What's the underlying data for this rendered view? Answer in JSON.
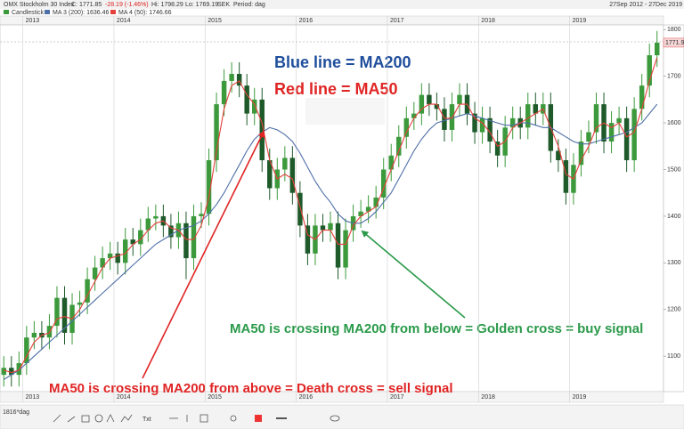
{
  "chart_data": {
    "type": "candlestick",
    "title": "OMX Stockholm 30 Index",
    "quote": [
      "C: 1771.85",
      "-28.19 (-1.46%)",
      "Hi: 1798.29",
      "Lo: 1769.19",
      "SEK",
      "Period: dag"
    ],
    "date_range": "27Sep 2012 - 27Dec 2019",
    "candle_name": "Candlestick",
    "up_color": "#3c9a3c",
    "down_color": "#1e5a2a",
    "price_tag": "1771.9",
    "toolbar": [
      "1816*dag",
      "Txt"
    ],
    "categories": [
      null,
      null,
      null,
      "2013",
      null,
      null,
      null,
      null,
      null,
      null,
      null,
      null,
      null,
      null,
      null,
      "2014",
      null,
      null,
      null,
      null,
      null,
      null,
      null,
      null,
      null,
      null,
      null,
      "2015",
      null,
      null,
      null,
      null,
      null,
      null,
      null,
      null,
      null,
      null,
      null,
      "2016",
      null,
      null,
      null,
      null,
      null,
      null,
      null,
      null,
      null,
      null,
      null,
      "2017",
      null,
      null,
      null,
      null,
      null,
      null,
      null,
      null,
      null,
      null,
      null,
      "2018",
      null,
      null,
      null,
      null,
      null,
      null,
      null,
      null,
      null,
      null,
      null,
      "2019",
      null,
      null,
      null,
      null,
      null,
      null,
      null,
      null,
      null,
      null,
      null
    ],
    "open": [
      1060,
      1075,
      1060,
      1085,
      1140,
      1150,
      1140,
      1165,
      1225,
      1150,
      1210,
      1215,
      1265,
      1290,
      1310,
      1320,
      1300,
      1350,
      1340,
      1370,
      1395,
      1400,
      1380,
      1355,
      1385,
      1310,
      1400,
      1405,
      1520,
      1640,
      1690,
      1705,
      1680,
      1620,
      1650,
      1520,
      1460,
      1500,
      1525,
      1450,
      1380,
      1320,
      1380,
      1370,
      1385,
      1290,
      1370,
      1400,
      1410,
      1420,
      1440,
      1500,
      1530,
      1570,
      1610,
      1620,
      1660,
      1640,
      1630,
      1585,
      1640,
      1660,
      1620,
      1580,
      1610,
      1560,
      1530,
      1590,
      1610,
      1590,
      1640,
      1620,
      1640,
      1540,
      1520,
      1450,
      1510,
      1560,
      1580,
      1640,
      1560,
      1600,
      1610,
      1520,
      1630,
      1680,
      1745
    ],
    "high": [
      1100,
      1100,
      1110,
      1165,
      1175,
      1175,
      1190,
      1250,
      1250,
      1235,
      1240,
      1290,
      1315,
      1335,
      1345,
      1345,
      1375,
      1375,
      1395,
      1420,
      1425,
      1425,
      1405,
      1410,
      1410,
      1425,
      1430,
      1545,
      1665,
      1715,
      1730,
      1730,
      1705,
      1675,
      1675,
      1545,
      1525,
      1550,
      1550,
      1475,
      1405,
      1405,
      1405,
      1410,
      1410,
      1395,
      1425,
      1435,
      1445,
      1465,
      1525,
      1555,
      1595,
      1635,
      1645,
      1685,
      1685,
      1665,
      1655,
      1665,
      1685,
      1685,
      1645,
      1635,
      1635,
      1585,
      1615,
      1635,
      1635,
      1665,
      1665,
      1665,
      1665,
      1565,
      1545,
      1535,
      1585,
      1605,
      1665,
      1665,
      1625,
      1635,
      1635,
      1655,
      1705,
      1770,
      1797
    ],
    "low": [
      1035,
      1035,
      1035,
      1060,
      1115,
      1115,
      1115,
      1140,
      1125,
      1125,
      1185,
      1190,
      1240,
      1265,
      1285,
      1275,
      1275,
      1315,
      1315,
      1345,
      1370,
      1355,
      1330,
      1330,
      1265,
      1285,
      1375,
      1380,
      1495,
      1615,
      1665,
      1655,
      1595,
      1595,
      1495,
      1435,
      1435,
      1475,
      1425,
      1355,
      1295,
      1295,
      1345,
      1345,
      1265,
      1265,
      1345,
      1375,
      1385,
      1395,
      1415,
      1475,
      1505,
      1545,
      1585,
      1595,
      1615,
      1605,
      1560,
      1560,
      1615,
      1595,
      1555,
      1555,
      1535,
      1505,
      1505,
      1565,
      1565,
      1565,
      1595,
      1595,
      1515,
      1495,
      1425,
      1425,
      1485,
      1535,
      1555,
      1535,
      1535,
      1575,
      1495,
      1495,
      1605,
      1655,
      1720
    ],
    "close": [
      1075,
      1060,
      1085,
      1140,
      1150,
      1140,
      1165,
      1225,
      1150,
      1210,
      1215,
      1265,
      1290,
      1310,
      1320,
      1300,
      1350,
      1340,
      1370,
      1395,
      1400,
      1380,
      1355,
      1385,
      1310,
      1400,
      1405,
      1520,
      1640,
      1690,
      1705,
      1680,
      1620,
      1650,
      1520,
      1460,
      1500,
      1525,
      1450,
      1380,
      1320,
      1380,
      1370,
      1385,
      1290,
      1370,
      1400,
      1410,
      1420,
      1440,
      1500,
      1530,
      1570,
      1610,
      1620,
      1660,
      1640,
      1630,
      1585,
      1640,
      1660,
      1620,
      1580,
      1610,
      1560,
      1530,
      1590,
      1610,
      1590,
      1640,
      1620,
      1640,
      1540,
      1520,
      1450,
      1510,
      1560,
      1580,
      1640,
      1560,
      1600,
      1610,
      1520,
      1630,
      1680,
      1745,
      1772
    ],
    "series": [
      {
        "name": "MA 3 (200): 1636.46",
        "color": "#4f6fa8",
        "values": [
          1050,
          1060,
          1070,
          1085,
          1100,
          1115,
          1130,
          1145,
          1160,
          1175,
          1190,
          1205,
          1220,
          1235,
          1250,
          1265,
          1280,
          1295,
          1310,
          1325,
          1340,
          1350,
          1360,
          1370,
          1375,
          1380,
          1390,
          1405,
          1425,
          1450,
          1480,
          1510,
          1540,
          1565,
          1580,
          1590,
          1585,
          1575,
          1560,
          1535,
          1505,
          1475,
          1450,
          1430,
          1405,
          1390,
          1385,
          1385,
          1395,
          1410,
          1430,
          1450,
          1480,
          1510,
          1540,
          1565,
          1585,
          1600,
          1605,
          1610,
          1615,
          1620,
          1615,
          1610,
          1605,
          1600,
          1595,
          1595,
          1600,
          1600,
          1595,
          1590,
          1590,
          1580,
          1570,
          1560,
          1555,
          1555,
          1560,
          1565,
          1570,
          1575,
          1580,
          1590,
          1600,
          1620,
          1640
        ]
      },
      {
        "name": "MA 4 (50): 1746.66",
        "color": "#e5403a",
        "values": [
          1070,
          1065,
          1070,
          1100,
          1130,
          1145,
          1150,
          1180,
          1185,
          1180,
          1200,
          1230,
          1260,
          1290,
          1310,
          1315,
          1320,
          1340,
          1350,
          1370,
          1385,
          1390,
          1375,
          1370,
          1350,
          1350,
          1380,
          1440,
          1540,
          1630,
          1680,
          1690,
          1660,
          1640,
          1600,
          1520,
          1480,
          1490,
          1480,
          1420,
          1360,
          1350,
          1370,
          1370,
          1340,
          1340,
          1380,
          1400,
          1410,
          1420,
          1460,
          1500,
          1540,
          1580,
          1610,
          1630,
          1640,
          1640,
          1610,
          1610,
          1640,
          1640,
          1610,
          1600,
          1580,
          1550,
          1560,
          1590,
          1600,
          1610,
          1620,
          1630,
          1590,
          1550,
          1490,
          1480,
          1520,
          1550,
          1590,
          1600,
          1590,
          1600,
          1570,
          1580,
          1630,
          1690,
          1740
        ]
      }
    ],
    "ylim": [
      1024,
      1810
    ],
    "yticks": [
      1100,
      1200,
      1300,
      1400,
      1500,
      1600,
      1700,
      1800
    ],
    "annotations": [
      {
        "text": "Blue line = MA200",
        "color": "#1f4e9c"
      },
      {
        "text": "Red line = MA50",
        "color": "#e02424"
      },
      {
        "text": "MA50 is crossing MA200 from below = Golden cross = buy signal",
        "color": "#2a9a4a"
      },
      {
        "text": "MA50 is crossing MA200 from above = Death cross = sell signal",
        "color": "#e02424"
      }
    ]
  }
}
